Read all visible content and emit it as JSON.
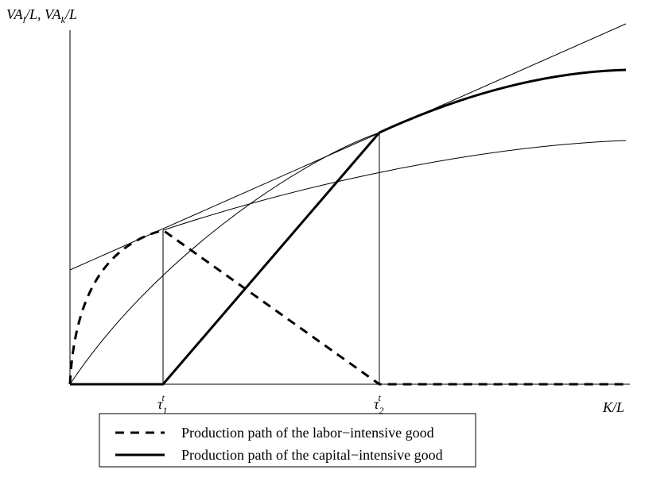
{
  "y_axis_label": {
    "part1": "VA",
    "sub1": "l",
    "part2": "/L, VA",
    "sub2": "k",
    "part3": "/L"
  },
  "x_axis_label": "K/L",
  "ticks": [
    {
      "symbol": "τ",
      "sub": "1",
      "sup": "t"
    },
    {
      "symbol": "τ",
      "sub": "2",
      "sup": "t"
    }
  ],
  "legend": [
    "Production path of the labor−intensive good",
    "Production path of the capital−intensive good"
  ]
}
